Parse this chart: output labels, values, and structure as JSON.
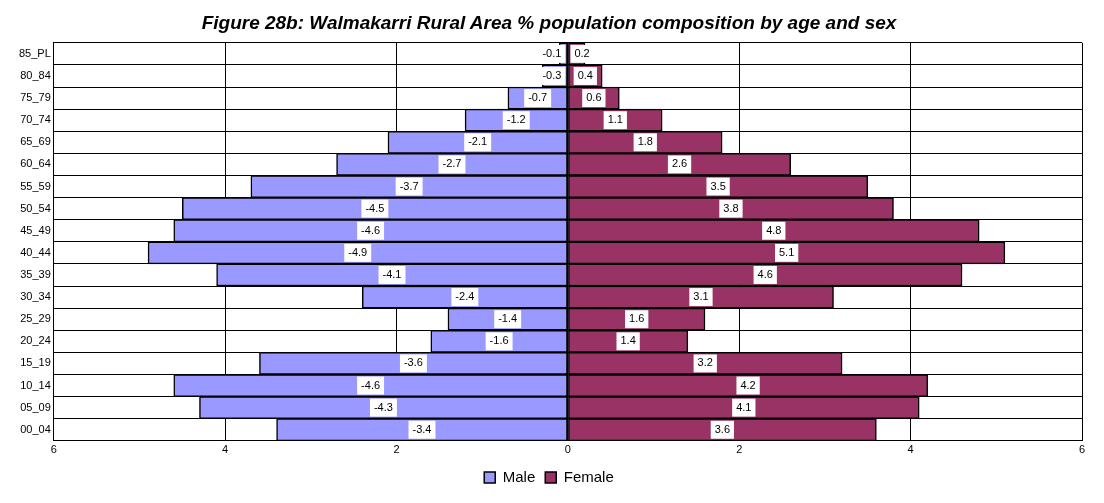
{
  "chart_data": {
    "type": "bar",
    "orientation": "horizontal",
    "stacked": true,
    "title": "Figure 28b: Walmakarri Rural Area % population composition by age and sex",
    "categories": [
      "85_PL",
      "80_84",
      "75_79",
      "70_74",
      "65_69",
      "60_64",
      "55_59",
      "50_54",
      "45_49",
      "40_44",
      "35_39",
      "30_34",
      "25_29",
      "20_24",
      "15_19",
      "10_14",
      "05_09",
      "00_04"
    ],
    "series": [
      {
        "name": "Male",
        "color": "#9999ff",
        "values": [
          -0.1,
          -0.3,
          -0.7,
          -1.2,
          -2.1,
          -2.7,
          -3.7,
          -4.5,
          -4.6,
          -4.9,
          -4.1,
          -2.4,
          -1.4,
          -1.6,
          -3.6,
          -4.6,
          -4.3,
          -3.4
        ]
      },
      {
        "name": "Female",
        "color": "#993366",
        "values": [
          0.2,
          0.4,
          0.6,
          1.1,
          1.8,
          2.6,
          3.5,
          3.8,
          4.8,
          5.1,
          4.6,
          3.1,
          1.6,
          1.4,
          3.2,
          4.2,
          4.1,
          3.6
        ]
      }
    ],
    "xlim": [
      -6,
      6
    ],
    "xticks": [
      {
        "value": -6,
        "label": "6"
      },
      {
        "value": -4,
        "label": "4"
      },
      {
        "value": -2,
        "label": "2"
      },
      0,
      2,
      4,
      6
    ],
    "grid": true,
    "legend": "bottom",
    "data_labels": true
  }
}
